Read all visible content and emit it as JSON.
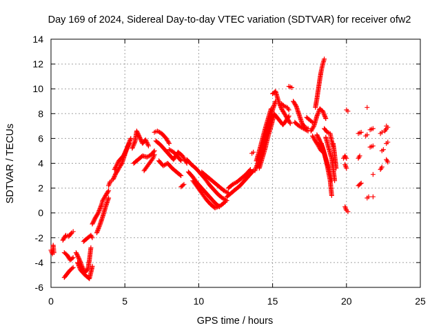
{
  "chart_data": {
    "type": "scatter",
    "title": "Day 169 of 2024, Sidereal Day-to-day VTEC variation (SDTVAR) for receiver ofw2",
    "xlabel": "GPS time / hours",
    "ylabel": "SDTVAR / TECUs",
    "xlim": [
      0,
      25
    ],
    "ylim": [
      -6,
      14
    ],
    "x_ticks": [
      0,
      5,
      10,
      15,
      20,
      25
    ],
    "y_ticks": [
      -6,
      -4,
      -2,
      0,
      2,
      4,
      6,
      8,
      10,
      12,
      14
    ],
    "x_tick_labels": [
      "0",
      "5",
      "10",
      "15",
      "20",
      "25"
    ],
    "y_tick_labels": [
      "-6",
      "-4",
      "-2",
      "0",
      "2",
      "4",
      "6",
      "8",
      "10",
      "12",
      "14"
    ],
    "grid": true,
    "marker": "+",
    "color": "#ff0000",
    "series": [
      {
        "name": "SDTVAR",
        "segments": [
          {
            "x": [
              0.0,
              0.1,
              0.15,
              0.2
            ],
            "y": [
              -3.0,
              -3.3,
              -2.6,
              -3.2
            ]
          },
          {
            "x": [
              0.8,
              1.0,
              1.2,
              1.4,
              1.5
            ],
            "y": [
              -2.2,
              -1.8,
              -1.9,
              -1.6,
              -1.5
            ]
          },
          {
            "x": [
              0.9,
              1.1,
              1.3,
              1.5
            ],
            "y": [
              -3.2,
              -3.4,
              -3.8,
              -3.6
            ]
          },
          {
            "x": [
              0.9,
              1.1,
              1.3,
              1.5
            ],
            "y": [
              -5.2,
              -4.9,
              -4.6,
              -4.4
            ]
          },
          {
            "x": [
              1.7,
              1.9,
              2.1,
              2.3,
              2.5,
              2.6,
              2.7
            ],
            "y": [
              -3.2,
              -3.7,
              -4.3,
              -4.8,
              -4.5,
              -3.8,
              -2.8
            ]
          },
          {
            "x": [
              1.8,
              2.0,
              2.3,
              2.6,
              2.8
            ],
            "y": [
              -4.0,
              -4.6,
              -5.0,
              -5.3,
              -4.3
            ]
          },
          {
            "x": [
              2.2,
              2.5,
              2.7,
              2.8
            ],
            "y": [
              -2.3,
              -2.0,
              -1.8,
              -2.0
            ]
          },
          {
            "x": [
              2.8,
              3.0,
              3.2,
              3.4,
              3.5,
              3.7,
              3.9
            ],
            "y": [
              -0.9,
              -0.4,
              0.0,
              0.6,
              1.0,
              1.4,
              1.8
            ]
          },
          {
            "x": [
              3.1,
              3.3,
              3.5,
              3.7,
              3.9
            ],
            "y": [
              -1.6,
              -1.0,
              -0.3,
              0.5,
              1.2
            ]
          },
          {
            "x": [
              3.9,
              4.0,
              4.1
            ],
            "y": [
              2.2,
              2.5,
              2.6
            ]
          },
          {
            "x": [
              4.2,
              4.4,
              4.6,
              4.8,
              5.0,
              5.2,
              5.4
            ],
            "y": [
              2.7,
              3.2,
              3.6,
              4.0,
              4.7,
              5.4,
              6.0
            ]
          },
          {
            "x": [
              4.3,
              4.6,
              4.9,
              5.1,
              5.3
            ],
            "y": [
              3.5,
              4.2,
              4.6,
              5.1,
              5.6
            ]
          },
          {
            "x": [
              5.5,
              5.7,
              5.8,
              6.0,
              6.2,
              6.4,
              6.6
            ],
            "y": [
              5.2,
              5.8,
              6.6,
              6.1,
              5.6,
              5.9,
              5.4
            ]
          },
          {
            "x": [
              5.6,
              5.9,
              6.2,
              6.5,
              6.8,
              7.0
            ],
            "y": [
              4.0,
              4.3,
              4.6,
              4.5,
              4.7,
              5.0
            ]
          },
          {
            "x": [
              6.3,
              6.6,
              6.9,
              7.0
            ],
            "y": [
              3.4,
              3.9,
              4.4,
              4.7
            ]
          },
          {
            "x": [
              7.0,
              7.2,
              7.5,
              7.8,
              8.0
            ],
            "y": [
              6.5,
              6.6,
              6.4,
              6.0,
              5.6
            ]
          },
          {
            "x": [
              7.1,
              7.4,
              7.7,
              8.0,
              8.3,
              8.6,
              8.9,
              9.2
            ],
            "y": [
              5.8,
              5.5,
              5.1,
              4.7,
              4.3,
              4.9,
              4.6,
              4.0
            ]
          },
          {
            "x": [
              7.3,
              7.6,
              7.9,
              8.2,
              8.5,
              8.8
            ],
            "y": [
              4.2,
              3.8,
              4.0,
              3.6,
              3.3,
              3.0
            ]
          },
          {
            "x": [
              8.0,
              8.3,
              8.6,
              8.8
            ],
            "y": [
              5.1,
              4.9,
              4.5,
              4.2
            ]
          },
          {
            "x": [
              8.8,
              9.0
            ],
            "y": [
              2.1,
              2.3
            ]
          },
          {
            "x": [
              9.2,
              9.5,
              9.8,
              10.1,
              10.4,
              10.7,
              11.0,
              11.3,
              11.6,
              11.9
            ],
            "y": [
              4.3,
              3.9,
              3.6,
              3.2,
              2.8,
              2.3,
              1.9,
              1.5,
              1.2,
              1.0
            ]
          },
          {
            "x": [
              9.3,
              9.6,
              9.9,
              10.2,
              10.5,
              10.8,
              11.1,
              11.4
            ],
            "y": [
              3.3,
              2.9,
              2.4,
              2.0,
              1.6,
              1.2,
              0.8,
              0.5
            ]
          },
          {
            "x": [
              9.6,
              9.9,
              10.2,
              10.5,
              10.8,
              11.1,
              11.5,
              11.8
            ],
            "y": [
              2.6,
              2.1,
              1.6,
              1.1,
              0.7,
              0.4,
              0.6,
              0.9
            ]
          },
          {
            "x": [
              10.2,
              10.5,
              10.8,
              11.1,
              11.4,
              11.7,
              12.0
            ],
            "y": [
              3.3,
              3.0,
              2.7,
              2.4,
              2.1,
              1.8,
              1.6
            ]
          },
          {
            "x": [
              11.9,
              12.2,
              12.5,
              12.8,
              13.1,
              13.4,
              13.7
            ],
            "y": [
              1.3,
              1.6,
              1.9,
              2.2,
              2.6,
              3.0,
              3.4
            ]
          },
          {
            "x": [
              12.0,
              12.3,
              12.6,
              12.9,
              13.2,
              13.5
            ],
            "y": [
              2.0,
              2.3,
              2.5,
              2.8,
              3.1,
              3.5
            ]
          },
          {
            "x": [
              13.6,
              13.7
            ],
            "y": [
              4.8,
              4.9
            ]
          },
          {
            "x": [
              13.8,
              14.0,
              14.2,
              14.4,
              14.6,
              14.8,
              15.0,
              15.2
            ],
            "y": [
              3.4,
              4.0,
              4.8,
              5.6,
              6.5,
              7.4,
              8.3,
              9.0
            ]
          },
          {
            "x": [
              13.9,
              14.1,
              14.3,
              14.5,
              14.7,
              14.9
            ],
            "y": [
              4.2,
              5.0,
              5.9,
              6.8,
              7.6,
              8.4
            ]
          },
          {
            "x": [
              14.1,
              14.3,
              14.5,
              14.7,
              14.9,
              15.1
            ],
            "y": [
              3.6,
              4.4,
              5.2,
              6.2,
              7.0,
              7.9
            ]
          },
          {
            "x": [
              15.0,
              15.2,
              15.4,
              15.6,
              15.8,
              16.0,
              16.2
            ],
            "y": [
              9.6,
              9.8,
              9.0,
              8.4,
              8.0,
              7.6,
              7.2
            ]
          },
          {
            "x": [
              15.1,
              15.3,
              15.5,
              15.7,
              15.9,
              16.1
            ],
            "y": [
              8.0,
              7.7,
              7.4,
              7.1,
              7.4,
              7.8
            ]
          },
          {
            "x": [
              15.6,
              15.8,
              16.0,
              16.1
            ],
            "y": [
              8.8,
              8.6,
              8.5,
              8.3
            ]
          },
          {
            "x": [
              16.1,
              16.3
            ],
            "y": [
              10.2,
              10.1
            ]
          },
          {
            "x": [
              16.4,
              16.6,
              16.8,
              17.0,
              17.2,
              17.4
            ],
            "y": [
              9.0,
              8.6,
              7.9,
              7.2,
              6.9,
              6.8
            ]
          },
          {
            "x": [
              16.5,
              16.8,
              17.1,
              17.4
            ],
            "y": [
              7.3,
              7.0,
              6.8,
              6.6
            ]
          },
          {
            "x": [
              17.3,
              17.5,
              17.7
            ],
            "y": [
              7.7,
              7.5,
              7.3
            ]
          },
          {
            "x": [
              17.6,
              17.8,
              18.0,
              18.2,
              18.4,
              18.6
            ],
            "y": [
              6.6,
              7.0,
              7.8,
              8.4,
              8.2,
              7.6
            ]
          },
          {
            "x": [
              17.7,
              17.9,
              18.1,
              18.3,
              18.5
            ],
            "y": [
              6.2,
              5.8,
              5.4,
              5.0,
              4.8
            ]
          },
          {
            "x": [
              17.9,
              18.0,
              18.1,
              18.2,
              18.3,
              18.4,
              18.5
            ],
            "y": [
              8.5,
              9.2,
              10.0,
              10.8,
              11.5,
              12.0,
              12.4
            ]
          },
          {
            "x": [
              18.5,
              18.7,
              18.9,
              19.0,
              19.1
            ],
            "y": [
              6.8,
              6.5,
              6.4,
              5.8,
              5.4
            ]
          },
          {
            "x": [
              18.0,
              18.2,
              18.4,
              18.6,
              18.8,
              19.0
            ],
            "y": [
              6.3,
              5.8,
              5.2,
              4.4,
              3.6,
              2.6
            ]
          },
          {
            "x": [
              18.3,
              18.5,
              18.7,
              18.9,
              19.0
            ],
            "y": [
              5.6,
              4.8,
              3.8,
              2.6,
              1.4
            ]
          },
          {
            "x": [
              18.6,
              18.8,
              19.0,
              19.1,
              19.2
            ],
            "y": [
              6.1,
              5.2,
              4.4,
              3.6,
              2.6
            ]
          },
          {
            "x": [
              19.1,
              19.2,
              19.3
            ],
            "y": [
              5.6,
              4.7,
              3.6
            ]
          },
          {
            "x": [
              19.8,
              19.9,
              20.0
            ],
            "y": [
              4.4,
              4.6,
              4.4
            ]
          },
          {
            "x": [
              19.9,
              20.0
            ],
            "y": [
              3.9,
              3.6
            ]
          },
          {
            "x": [
              19.9,
              20.0,
              20.1
            ],
            "y": [
              0.5,
              0.2,
              0.1
            ]
          },
          {
            "x": [
              20.0,
              20.1
            ],
            "y": [
              8.3,
              8.2
            ]
          },
          {
            "x": [
              20.8,
              21.0
            ],
            "y": [
              6.4,
              6.5
            ]
          },
          {
            "x": [
              20.8,
              20.9
            ],
            "y": [
              4.4,
              4.6
            ]
          },
          {
            "x": [
              20.8,
              21.0
            ],
            "y": [
              2.2,
              2.4
            ]
          },
          {
            "x": [
              21.3,
              21.4
            ],
            "y": [
              6.2,
              6.3
            ]
          },
          {
            "x": [
              21.4
            ],
            "y": [
              8.5
            ]
          },
          {
            "x": [
              21.4,
              21.5
            ],
            "y": [
              1.2,
              1.3
            ]
          },
          {
            "x": [
              21.6,
              21.8
            ],
            "y": [
              6.7,
              6.8
            ]
          },
          {
            "x": [
              21.6,
              21.8
            ],
            "y": [
              5.3,
              5.4
            ]
          },
          {
            "x": [
              21.8
            ],
            "y": [
              3.1
            ]
          },
          {
            "x": [
              21.8
            ],
            "y": [
              1.3
            ]
          },
          {
            "x": [
              22.3,
              22.4
            ],
            "y": [
              6.4,
              6.5
            ]
          },
          {
            "x": [
              22.4,
              22.5
            ],
            "y": [
              5.0,
              5.1
            ]
          },
          {
            "x": [
              22.3,
              22.4
            ],
            "y": [
              3.5,
              3.7
            ]
          },
          {
            "x": [
              22.6,
              22.7
            ],
            "y": [
              6.6,
              6.8
            ]
          },
          {
            "x": [
              22.7,
              22.8
            ],
            "y": [
              7.0,
              6.9
            ]
          },
          {
            "x": [
              22.7,
              22.8
            ],
            "y": [
              5.6,
              5.7
            ]
          },
          {
            "x": [
              22.7,
              22.8
            ],
            "y": [
              4.3,
              4.1
            ]
          }
        ]
      }
    ]
  }
}
